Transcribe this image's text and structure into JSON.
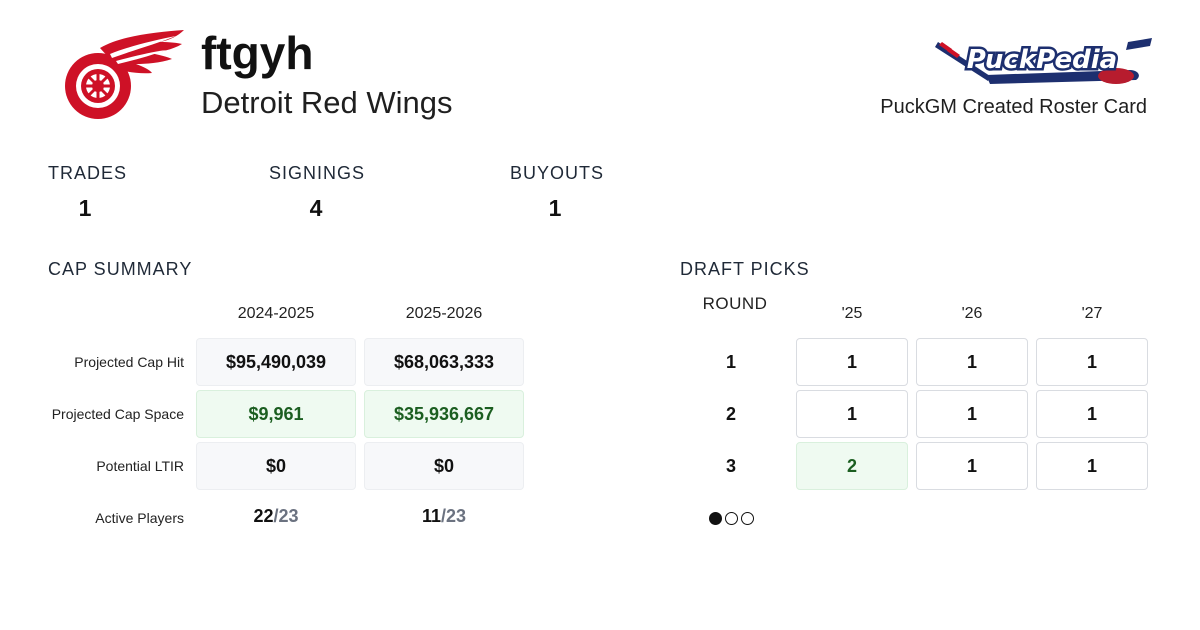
{
  "header": {
    "roster_name": "ftgyh",
    "team_name": "Detroit Red Wings",
    "team_logo_icon": "red-wings-winged-wheel-logo",
    "brand_logo_icon": "puckpedia-logo",
    "brand_logo_text": "PuckPedia",
    "card_label": "PuckGM Created Roster Card"
  },
  "stats": {
    "trades_label": "TRADES",
    "trades_value": "1",
    "signings_label": "SIGNINGS",
    "signings_value": "4",
    "buyouts_label": "BUYOUTS",
    "buyouts_value": "1"
  },
  "cap_summary": {
    "title": "CAP SUMMARY",
    "seasons": [
      "2024-2025",
      "2025-2026"
    ],
    "row_labels": {
      "cap_hit": "Projected Cap Hit",
      "cap_space": "Projected Cap Space",
      "ltir": "Potential LTIR",
      "active": "Active Players"
    },
    "cap_hit": [
      "$95,490,039",
      "$68,063,333"
    ],
    "cap_space": [
      "$9,961",
      "$35,936,667"
    ],
    "ltir": [
      "$0",
      "$0"
    ],
    "active_players": [
      "22",
      "11"
    ],
    "active_max": [
      "/23",
      "/23"
    ]
  },
  "draft_picks": {
    "title": "DRAFT PICKS",
    "round_header": "ROUND",
    "years": [
      "'25",
      "'26",
      "'27"
    ],
    "rounds": [
      {
        "round": "1",
        "picks": [
          "1",
          "1",
          "1"
        ]
      },
      {
        "round": "2",
        "picks": [
          "1",
          "1",
          "1"
        ]
      },
      {
        "round": "3",
        "picks": [
          "2",
          "1",
          "1"
        ]
      }
    ],
    "pagination": {
      "pages": 3,
      "current": 1
    }
  },
  "colors": {
    "positive_bg": "#effaf1",
    "positive_text": "#1b5e20",
    "red_wings_red": "#ce1126",
    "puckpedia_navy": "#1d2f6f"
  }
}
